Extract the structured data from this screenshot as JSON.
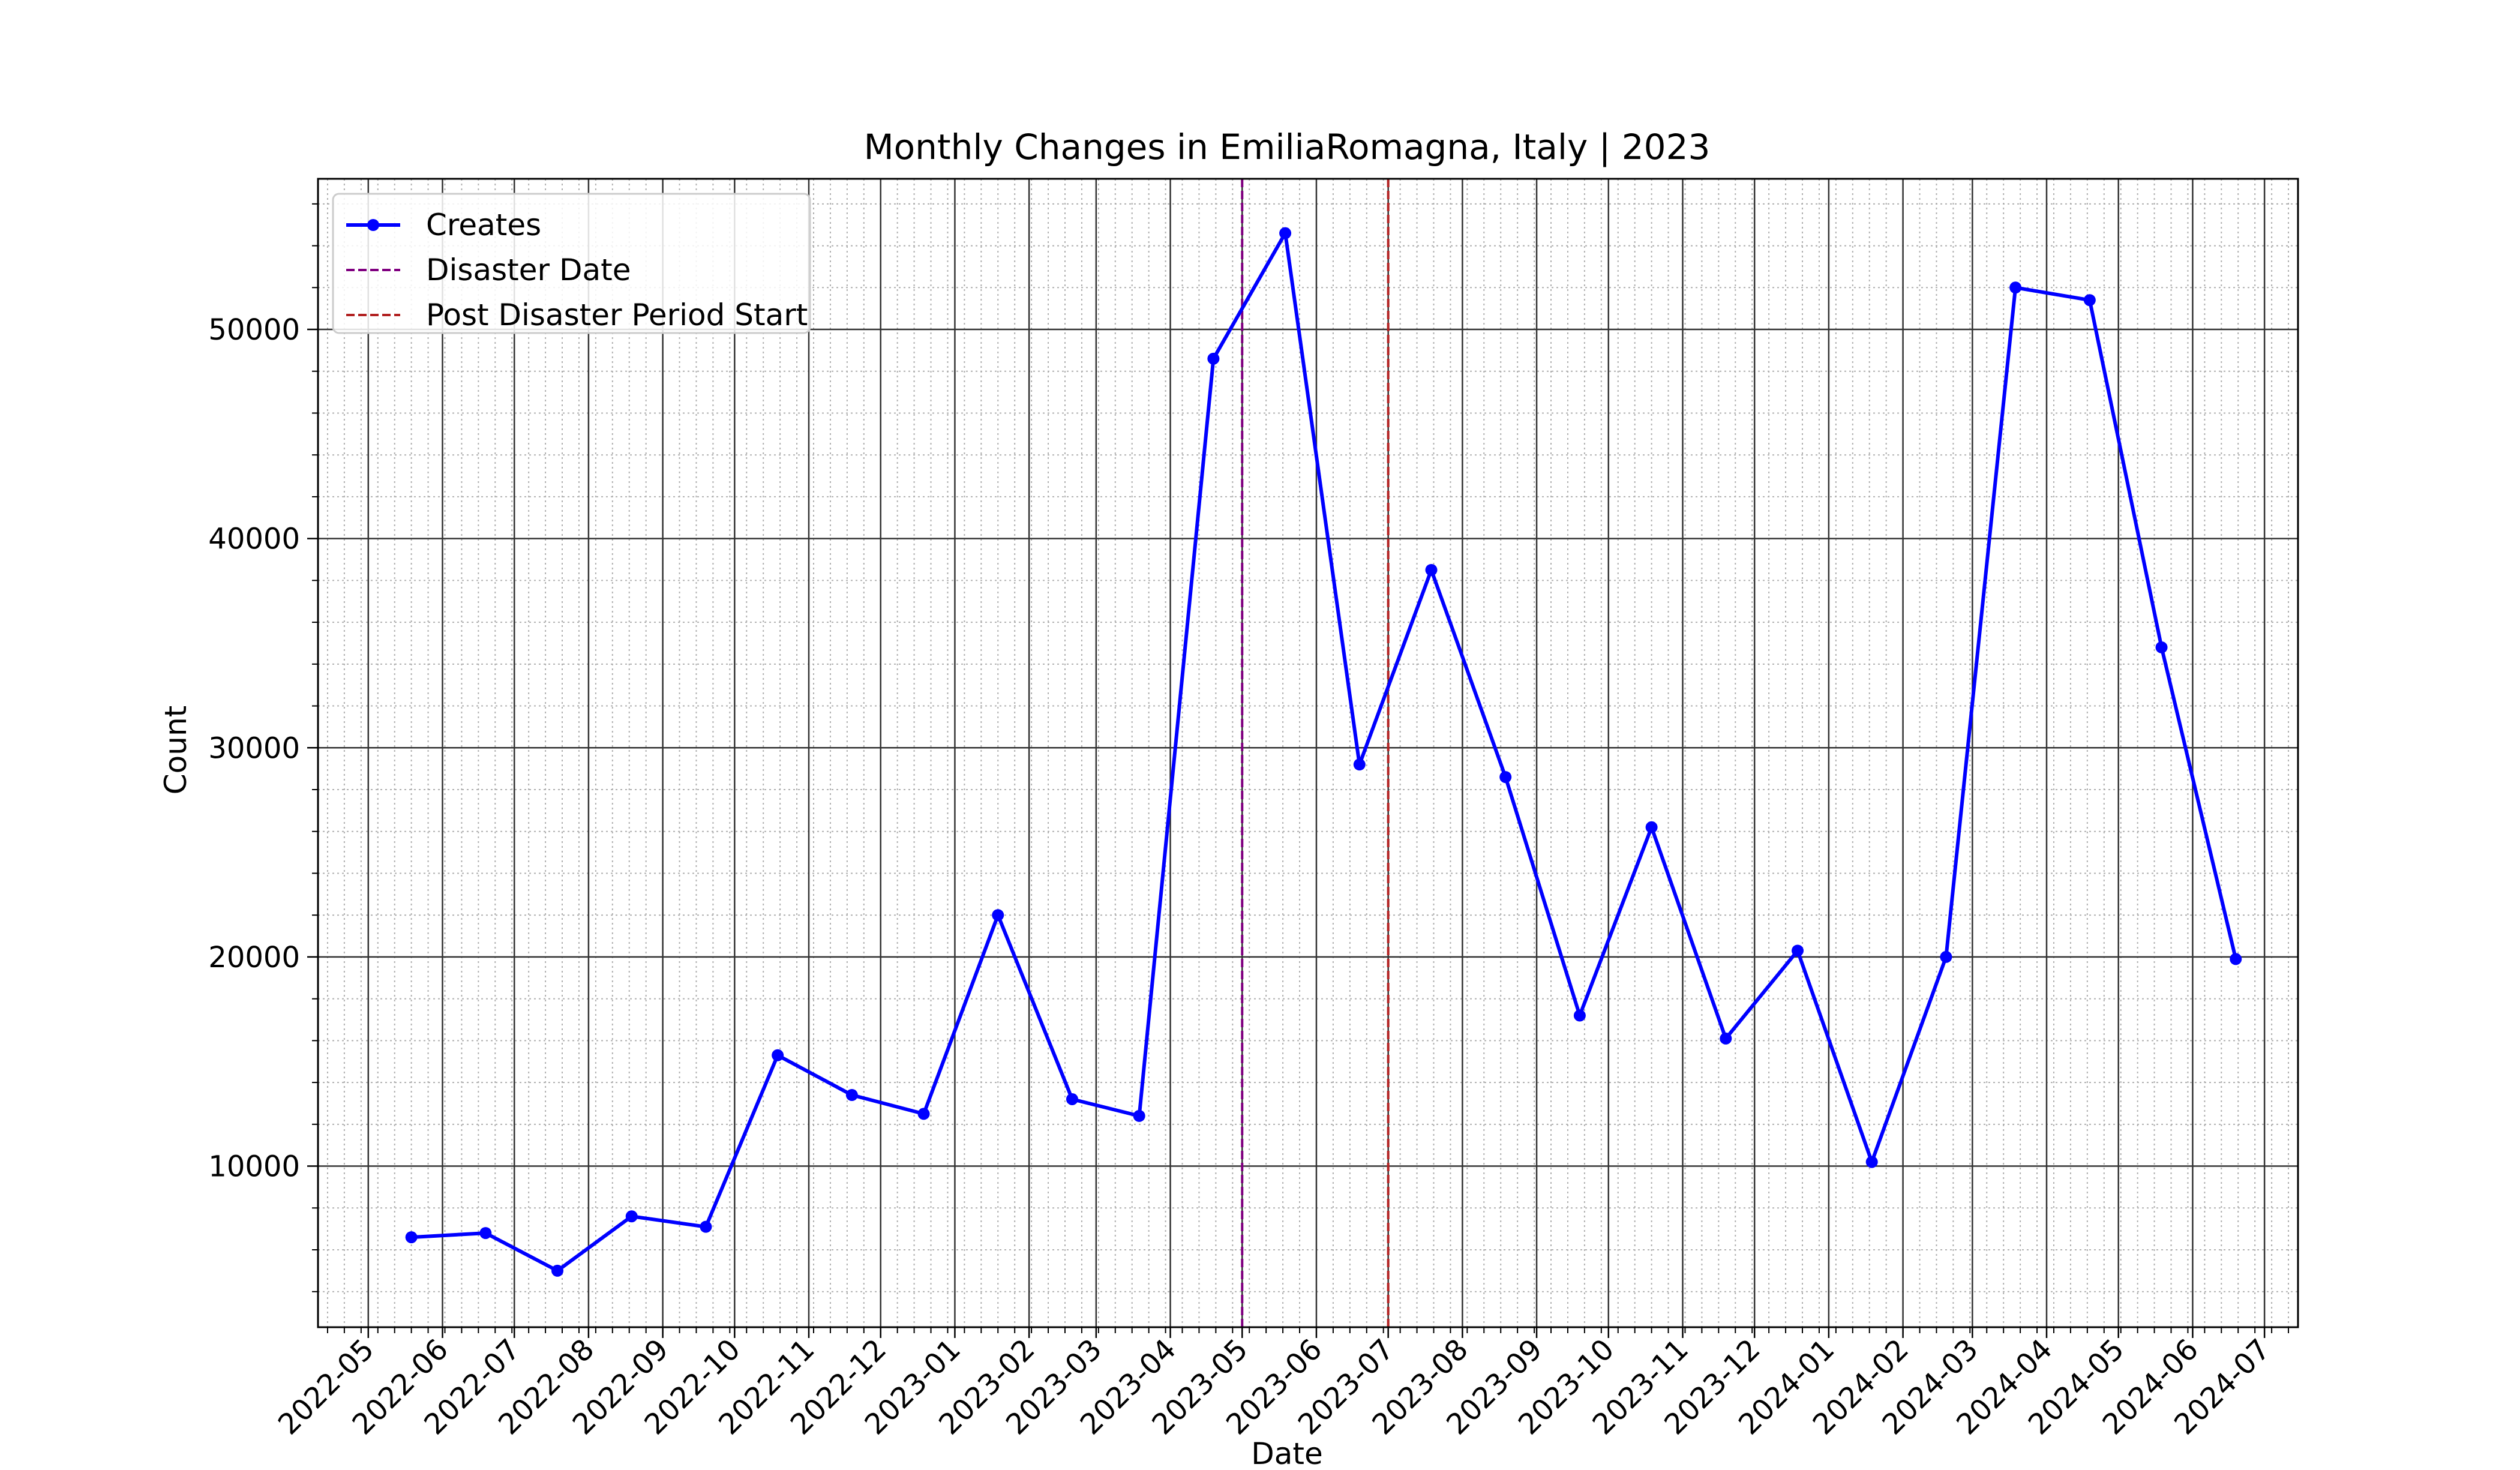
{
  "chart_data": {
    "type": "line",
    "title": "Monthly Changes in EmiliaRomagna, Italy | 2023",
    "xlabel": "Date",
    "ylabel": "Count",
    "x_axis_type": "date",
    "xlim": [
      "2022-04-10",
      "2024-07-15"
    ],
    "ylim": [
      2300,
      57200
    ],
    "x_ticks": [
      "2022-05",
      "2022-06",
      "2022-07",
      "2022-08",
      "2022-09",
      "2022-10",
      "2022-11",
      "2022-12",
      "2023-01",
      "2023-02",
      "2023-03",
      "2023-04",
      "2023-05",
      "2023-06",
      "2023-07",
      "2023-08",
      "2023-09",
      "2023-10",
      "2023-11",
      "2023-12",
      "2024-01",
      "2024-02",
      "2024-03",
      "2024-04",
      "2024-05",
      "2024-06",
      "2024-07"
    ],
    "y_ticks": [
      10000,
      20000,
      30000,
      40000,
      50000
    ],
    "grid": {
      "major": true,
      "minor": true
    },
    "legend_position": "top-left",
    "series": [
      {
        "name": "Creates",
        "color": "#0000ff",
        "marker": "circle",
        "x": [
          "2022-05-19",
          "2022-06-19",
          "2022-07-19",
          "2022-08-19",
          "2022-09-19",
          "2022-10-19",
          "2022-11-19",
          "2022-12-19",
          "2023-01-19",
          "2023-02-19",
          "2023-03-19",
          "2023-04-19",
          "2023-05-19",
          "2023-06-19",
          "2023-07-19",
          "2023-08-19",
          "2023-09-19",
          "2023-10-19",
          "2023-11-19",
          "2023-12-19",
          "2024-01-19",
          "2024-02-19",
          "2024-03-19",
          "2024-04-19",
          "2024-05-19",
          "2024-06-19"
        ],
        "values": [
          6600,
          6800,
          5000,
          7600,
          7100,
          15300,
          13400,
          12500,
          22000,
          13200,
          12400,
          48600,
          54600,
          29200,
          38500,
          28600,
          17200,
          26200,
          16100,
          20300,
          10200,
          20000,
          52000,
          51400,
          34800,
          19900
        ]
      }
    ],
    "vlines": [
      {
        "name": "Disaster Date",
        "x": "2023-05-01",
        "color": "#800080",
        "style": "dashed"
      },
      {
        "name": "Post Disaster Period Start",
        "x": "2023-07-01",
        "color": "#b22222",
        "style": "dashed"
      }
    ]
  }
}
